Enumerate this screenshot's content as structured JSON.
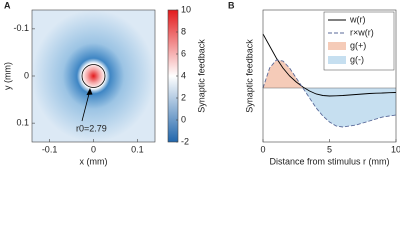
{
  "chart_data": [
    {
      "type": "heatmap",
      "panel": "A",
      "xlabel": "x (mm)",
      "ylabel": "y (mm)",
      "xlim": [
        -0.14,
        0.14
      ],
      "xticks": [
        -0.1,
        0,
        0.1
      ],
      "ylim": [
        -0.14,
        0.14
      ],
      "yticks": [
        -0.1,
        0,
        0.1
      ],
      "y_inverted": true,
      "annotation": "r0=2.79",
      "colorbar": {
        "label": "Synaptic feedback",
        "lim": [
          -2,
          10
        ],
        "ticks": [
          -2,
          0,
          2,
          4,
          6,
          8,
          10
        ],
        "colors": [
          "#2166ac",
          "#ffffff",
          "#e31a1c"
        ]
      }
    },
    {
      "type": "line",
      "panel": "B",
      "xlabel": "Distance from stimulus r (mm)",
      "ylabel": "Synaptic feedback",
      "x": [
        0,
        0.5,
        1,
        1.5,
        2,
        2.5,
        3,
        3.5,
        4,
        4.5,
        5,
        5.5,
        6,
        6.5,
        7,
        7.5,
        8,
        8.5,
        9,
        9.5,
        10
      ],
      "xlim": [
        0,
        10
      ],
      "xticks": [
        0,
        5,
        10
      ],
      "ylim": [
        -5.4,
        7.8
      ],
      "legend": "upper right",
      "series": [
        {
          "name": "w(r)",
          "color": "#000000",
          "dashed": false,
          "values": [
            5.4,
            4.2,
            3.0,
            2.0,
            1.2,
            0.6,
            0.1,
            -0.3,
            -0.6,
            -0.75,
            -0.8,
            -0.78,
            -0.75,
            -0.7,
            -0.65,
            -0.6,
            -0.55,
            -0.52,
            -0.5,
            -0.47,
            -0.45
          ]
        },
        {
          "name": "r×w(r)",
          "color": "#5a6a9a",
          "dashed": true,
          "values": [
            0,
            2.0,
            2.8,
            2.7,
            2.0,
            1.0,
            0,
            -1.0,
            -2.0,
            -2.8,
            -3.4,
            -3.8,
            -3.9,
            -3.8,
            -3.7,
            -3.5,
            -3.3,
            -3.1,
            -2.9,
            -2.8,
            -2.7
          ]
        }
      ],
      "areas": [
        {
          "name": "g(+)",
          "color": "#f5cbb8"
        },
        {
          "name": "g(-)",
          "color": "#c6dff0"
        }
      ]
    }
  ]
}
